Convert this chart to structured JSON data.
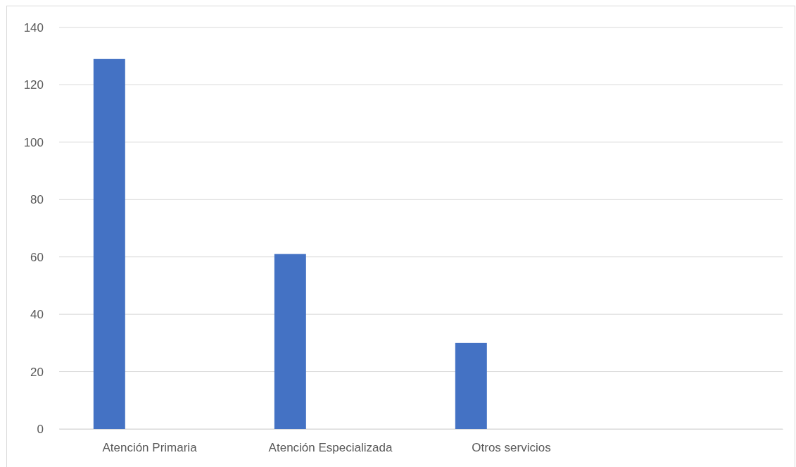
{
  "chart_data": {
    "type": "bar",
    "categories": [
      "Atención Primaria",
      "Atención Especializada",
      "Otros servicios",
      null
    ],
    "values": [
      129,
      61,
      30,
      null
    ],
    "color": "#4472c4",
    "ylim": [
      0,
      140
    ],
    "yticks": [
      0,
      20,
      40,
      60,
      80,
      100,
      120,
      140
    ],
    "grid": "y"
  }
}
